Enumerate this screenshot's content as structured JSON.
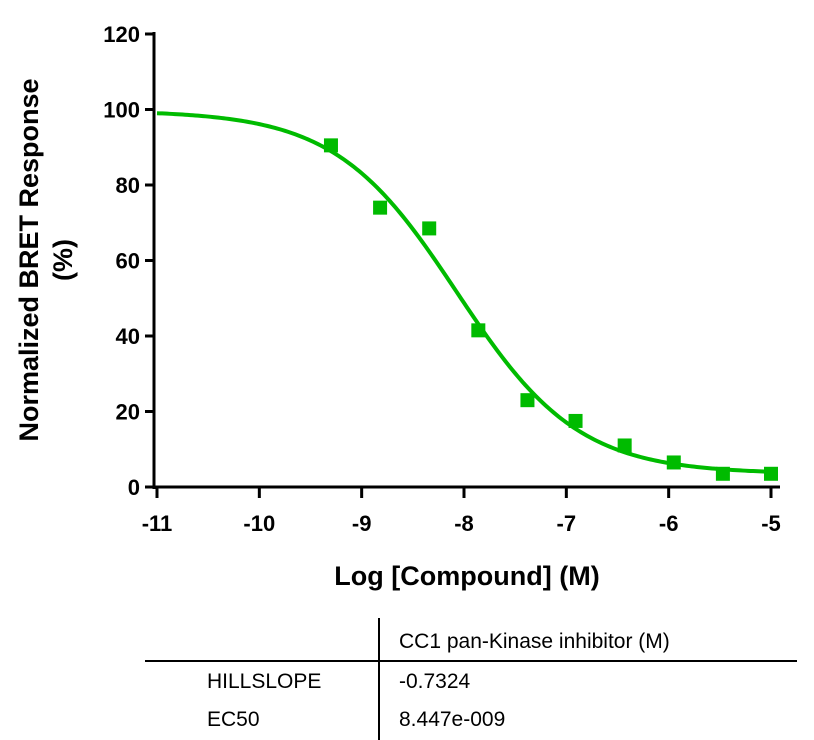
{
  "chart_data": {
    "type": "scatter",
    "xlabel": "Log [Compound] (M)",
    "ylabel": [
      "Normalized BRET Response",
      "(%)"
    ],
    "xlim": [
      -11,
      -5
    ],
    "ylim": [
      0,
      120
    ],
    "x_ticks": [
      "-11",
      "-10",
      "-9",
      "-8",
      "-7",
      "-6",
      "-5"
    ],
    "y_ticks": [
      "0",
      "20",
      "40",
      "60",
      "80",
      "100",
      "120"
    ],
    "grid": false,
    "color": "#00BB00",
    "points": {
      "x": [
        -9.3,
        -8.82,
        -8.34,
        -7.86,
        -7.38,
        -6.91,
        -6.43,
        -5.95,
        -5.47,
        -5.0
      ],
      "y": [
        90.5,
        74,
        68.5,
        41.5,
        23,
        17.5,
        11,
        6.5,
        3.5,
        3.5
      ]
    },
    "fit": {
      "top": 99.7,
      "bottom": 3.5,
      "log_ec50": -8.07,
      "hillslope": -0.7324
    }
  },
  "results_table": {
    "column_header": "CC1 pan-Kinase inhibitor (M)",
    "rows": [
      {
        "label": "HILLSLOPE",
        "value": "-0.7324"
      },
      {
        "label": "EC50",
        "value": "8.447e-009"
      }
    ]
  }
}
